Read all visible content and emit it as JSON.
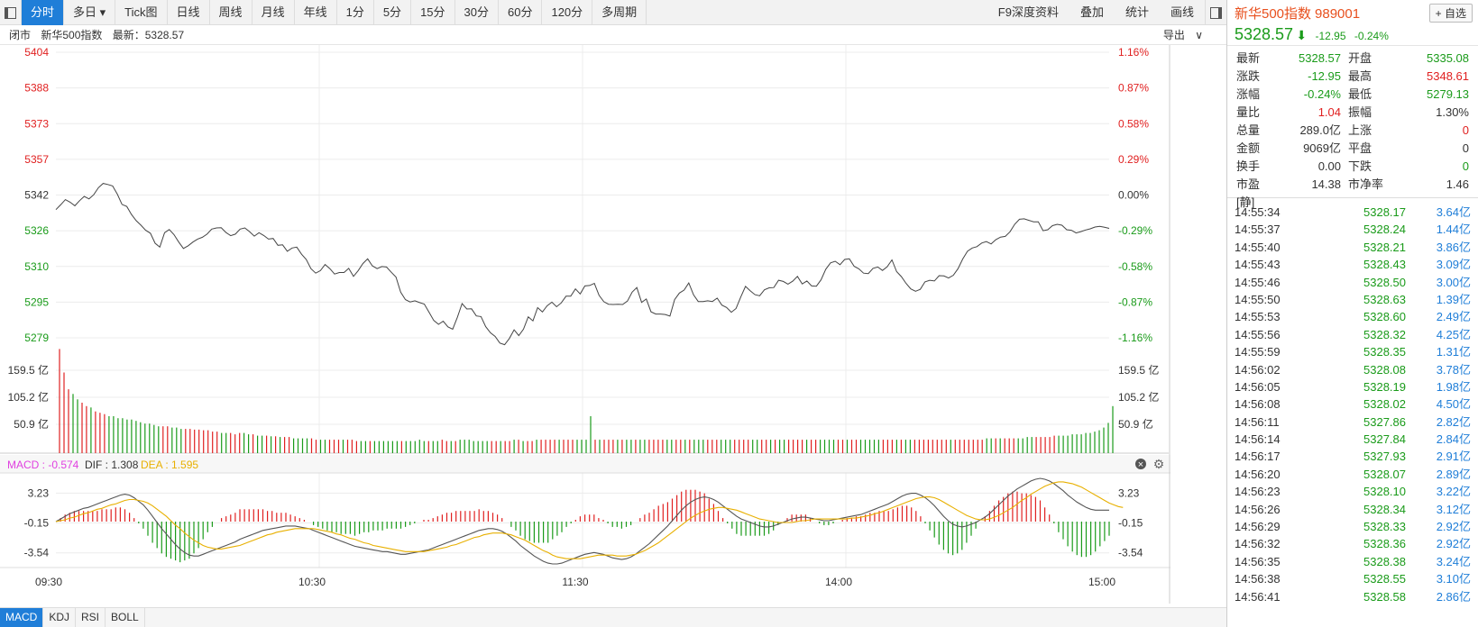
{
  "toolbar": {
    "tabs": [
      "分时",
      "多日",
      "Tick图",
      "日线",
      "周线",
      "月线",
      "年线",
      "1分",
      "5分",
      "15分",
      "30分",
      "60分",
      "120分",
      "多周期"
    ],
    "active_index": 0,
    "right_buttons": [
      "F9深度资料",
      "叠加",
      "统计",
      "画线"
    ]
  },
  "infobar": {
    "status": "闭市",
    "name": "新华500指数",
    "latest_label": "最新：5328.57",
    "export": "导出"
  },
  "colors": {
    "up": "#e02020",
    "down": "#1a9b1a",
    "accent": "#1f7ed8",
    "dif": "#555555",
    "dea": "#e8b000",
    "macd_label": "#e040e0"
  },
  "price_axis": {
    "left": [
      "5404",
      "5388",
      "5373",
      "5357",
      "5342",
      "5326",
      "5310",
      "5295",
      "5279"
    ],
    "right": [
      "1.16%",
      "0.87%",
      "0.58%",
      "0.29%",
      "0.00%",
      "-0.29%",
      "-0.58%",
      "-0.87%",
      "-1.16%"
    ]
  },
  "volume_axis": [
    "159.5 亿",
    "105.2 亿",
    "50.9 亿"
  ],
  "macd": {
    "labels": [
      "MACD : -0.574",
      "DIF : 1.308",
      "DEA : 1.595"
    ],
    "axis": [
      "3.23",
      "-0.15",
      "-3.54"
    ]
  },
  "time_axis": [
    "09:30",
    "10:30",
    "11:30",
    "14:00",
    "15:00"
  ],
  "bottom_tabs": [
    "MACD",
    "KDJ",
    "RSI",
    "BOLL"
  ],
  "chart_data": {
    "type": "line",
    "price": [
      5335.1,
      5337.2,
      5339.5,
      5338.4,
      5336.8,
      5339.0,
      5340.9,
      5339.8,
      5341.6,
      5344.7,
      5346.6,
      5346.1,
      5345.5,
      5341.9,
      5337.4,
      5336.5,
      5333.0,
      5330.3,
      5328.3,
      5326.1,
      5324.8,
      5320.4,
      5318.7,
      5325.0,
      5326.4,
      5324.2,
      5320.9,
      5318.1,
      5319.3,
      5320.9,
      5322.2,
      5323.0,
      5324.4,
      5326.6,
      5327.1,
      5327.2,
      5325.1,
      5323.7,
      5324.4,
      5326.6,
      5327.1,
      5325.5,
      5323.5,
      5325.0,
      5323.8,
      5322.2,
      5322.5,
      5319.5,
      5319.7,
      5316.9,
      5318.3,
      5318.7,
      5315.6,
      5313.3,
      5309.3,
      5307.3,
      5308.4,
      5311.1,
      5309.3,
      5306.9,
      5307.6,
      5307.6,
      5309.4,
      5305.9,
      5308.4,
      5311.5,
      5313.6,
      5310.5,
      5309.3,
      5310.2,
      5310.0,
      5307.7,
      5305.6,
      5299.0,
      5295.7,
      5294.7,
      5295.2,
      5294.4,
      5293.8,
      5290.2,
      5286.6,
      5284.9,
      5286.3,
      5283.8,
      5282.8,
      5288.0,
      5294.0,
      5291.6,
      5291.7,
      5288.6,
      5288.3,
      5283.9,
      5281.2,
      5279.6,
      5276.7,
      5276.0,
      5278.7,
      5282.5,
      5280.0,
      5282.8,
      5288.2,
      5286.4,
      5292.2,
      5290.3,
      5293.0,
      5294.6,
      5292.6,
      5294.3,
      5297.2,
      5297.2,
      5300.4,
      5298.2,
      5301.7,
      5301.9,
      5302.8,
      5297.6,
      5294.8,
      5293.7,
      5293.6,
      5293.7,
      5293.6,
      5295.1,
      5299.0,
      5301.0,
      5294.5,
      5296.0,
      5290.4,
      5289.4,
      5289.4,
      5289.2,
      5288.5,
      5295.7,
      5298.6,
      5299.9,
      5303.0,
      5297.8,
      5294.9,
      5294.9,
      5295.2,
      5294.9,
      5296.4,
      5293.3,
      5292.3,
      5290.2,
      5291.8,
      5296.9,
      5301.5,
      5299.6,
      5297.9,
      5297.4,
      5300.0,
      5300.9,
      5301.0,
      5304.2,
      5303.7,
      5302.5,
      5303.8,
      5305.9,
      5302.6,
      5303.9,
      5301.7,
      5301.6,
      5304.4,
      5309.0,
      5311.8,
      5312.5,
      5311.0,
      5313.3,
      5313.6,
      5310.3,
      5309.2,
      5307.3,
      5307.1,
      5309.4,
      5310.0,
      5308.5,
      5310.1,
      5313.1,
      5308.0,
      5305.8,
      5302.8,
      5300.4,
      5299.4,
      5300.2,
      5303.5,
      5304.2,
      5303.9,
      5306.2,
      5306.1,
      5305.2,
      5306.4,
      5309.3,
      5313.5,
      5316.9,
      5318.3,
      5318.9,
      5320.5,
      5321.1,
      5320.1,
      5322.0,
      5323.1,
      5323.4,
      5325.4,
      5328.7,
      5330.9,
      5331.1,
      5330.4,
      5329.8,
      5329.8,
      5325.9,
      5326.3,
      5328.1,
      5328.7,
      5328.3,
      5326.3,
      5326.1,
      5324.9,
      5325.5,
      5326.2,
      5326.7,
      5327.5,
      5327.8,
      5327.4,
      5326.9
    ],
    "volume_yi": [
      155,
      120,
      95,
      88,
      80,
      75,
      70,
      68,
      62,
      60,
      58,
      55,
      55,
      52,
      52,
      50,
      50,
      48,
      46,
      44,
      44,
      42,
      40,
      40,
      40,
      38,
      38,
      36,
      36,
      36,
      35,
      35,
      34,
      34,
      32,
      32,
      30,
      30,
      30,
      28,
      30,
      30,
      28,
      28,
      26,
      26,
      26,
      25,
      25,
      24,
      24,
      24,
      22,
      22,
      22,
      22,
      22,
      20,
      20,
      20,
      20,
      20,
      20,
      20,
      20,
      20,
      18,
      18,
      18,
      18,
      18,
      18,
      18,
      18,
      18,
      18,
      18,
      18,
      18,
      18,
      20,
      18,
      18,
      18,
      18,
      20,
      18,
      18,
      18,
      20,
      20,
      20,
      18,
      18,
      18,
      18,
      18,
      18,
      18,
      18,
      18,
      20,
      20,
      18,
      18,
      18,
      20,
      20,
      20,
      20,
      20,
      20,
      20,
      20,
      20,
      20,
      20,
      20,
      55,
      20,
      20,
      20,
      20,
      20,
      20,
      20,
      20,
      20,
      20,
      20,
      20,
      20,
      20,
      20,
      20,
      20,
      20,
      20,
      20,
      20,
      20,
      20,
      20,
      20,
      20,
      20,
      20,
      20,
      20,
      20,
      20,
      20,
      20,
      20,
      20,
      20,
      20,
      20,
      20,
      20,
      20,
      20,
      20,
      20,
      20,
      20,
      20,
      20,
      20,
      20,
      20,
      20,
      20,
      20,
      20,
      20,
      20,
      20,
      20,
      20,
      20,
      20,
      20,
      20,
      20,
      20,
      20,
      20,
      20,
      20,
      20,
      20,
      20,
      20,
      20,
      20,
      20,
      20,
      20,
      20,
      20,
      20,
      20,
      20,
      20,
      20,
      22,
      22,
      22,
      22,
      22,
      22,
      22,
      22,
      22,
      24,
      24,
      24,
      24,
      24,
      24,
      26,
      26,
      26,
      26,
      28,
      28,
      28,
      30,
      30,
      32,
      34,
      38,
      45,
      70
    ],
    "dif": [
      0.0,
      0.3,
      0.6,
      0.9,
      1.1,
      1.3,
      1.5,
      1.6,
      1.8,
      2.0,
      2.2,
      2.4,
      2.6,
      2.8,
      3.0,
      3.1,
      3.0,
      2.7,
      2.3,
      1.9,
      1.3,
      0.6,
      -0.1,
      -0.8,
      -1.4,
      -2.0,
      -2.6,
      -3.1,
      -3.5,
      -3.8,
      -3.9,
      -3.9,
      -3.7,
      -3.5,
      -3.3,
      -3.1,
      -2.9,
      -2.7,
      -2.5,
      -2.3,
      -2.0,
      -1.8,
      -1.6,
      -1.4,
      -1.2,
      -1.0,
      -0.9,
      -0.8,
      -0.7,
      -0.6,
      -0.5,
      -0.5,
      -0.5,
      -0.6,
      -0.7,
      -0.8,
      -1.0,
      -1.2,
      -1.4,
      -1.6,
      -1.8,
      -2.0,
      -2.2,
      -2.4,
      -2.6,
      -2.8,
      -2.9,
      -3.0,
      -3.1,
      -3.2,
      -3.3,
      -3.4,
      -3.4,
      -3.5,
      -3.6,
      -3.7,
      -3.7,
      -3.6,
      -3.5,
      -3.4,
      -3.3,
      -3.2,
      -3.0,
      -2.8,
      -2.6,
      -2.4,
      -2.2,
      -2.0,
      -1.8,
      -1.6,
      -1.4,
      -1.2,
      -1.0,
      -0.9,
      -0.8,
      -0.8,
      -0.9,
      -1.1,
      -1.4,
      -1.8,
      -2.2,
      -2.7,
      -3.1,
      -3.5,
      -3.9,
      -4.2,
      -4.5,
      -4.7,
      -4.8,
      -4.8,
      -4.7,
      -4.5,
      -4.3,
      -4.1,
      -3.9,
      -3.7,
      -3.6,
      -3.5,
      -3.6,
      -3.7,
      -3.9,
      -4.1,
      -4.2,
      -4.3,
      -4.2,
      -4.0,
      -3.7,
      -3.3,
      -2.9,
      -2.5,
      -2.0,
      -1.5,
      -1.0,
      -0.5,
      0.1,
      0.7,
      1.3,
      1.8,
      2.2,
      2.5,
      2.7,
      2.8,
      2.7,
      2.5,
      2.2,
      1.8,
      1.4,
      1.0,
      0.6,
      0.3,
      0.1,
      -0.1,
      -0.3,
      -0.5,
      -0.6,
      -0.6,
      -0.5,
      -0.3,
      -0.1,
      0.1,
      0.3,
      0.4,
      0.5,
      0.5,
      0.4,
      0.3,
      0.2,
      0.1,
      0.1,
      0.2,
      0.3,
      0.4,
      0.5,
      0.6,
      0.7,
      0.8,
      1.0,
      1.2,
      1.4,
      1.6,
      1.8,
      2.0,
      2.3,
      2.6,
      2.9,
      3.1,
      3.2,
      3.2,
      3.0,
      2.7,
      2.3,
      1.8,
      1.2,
      0.6,
      0.1,
      -0.3,
      -0.5,
      -0.6,
      -0.5,
      -0.3,
      -0.1,
      0.2,
      0.5,
      0.9,
      1.4,
      1.9,
      2.4,
      2.9,
      3.3,
      3.7,
      4.0,
      4.3,
      4.6,
      4.8,
      4.9,
      4.8,
      4.6,
      4.3,
      3.9,
      3.5,
      3.0,
      2.6,
      2.2,
      1.9,
      1.6,
      1.4,
      1.3,
      1.3,
      1.3,
      1.3
    ],
    "dea": [
      0.0,
      0.1,
      0.2,
      0.4,
      0.5,
      0.7,
      0.9,
      1.0,
      1.2,
      1.4,
      1.5,
      1.7,
      1.9,
      2.0,
      2.2,
      2.4,
      2.5,
      2.5,
      2.4,
      2.3,
      2.1,
      1.8,
      1.4,
      1.0,
      0.6,
      0.1,
      -0.4,
      -0.8,
      -1.3,
      -1.7,
      -2.1,
      -2.4,
      -2.7,
      -2.9,
      -3.0,
      -3.1,
      -3.1,
      -3.0,
      -2.9,
      -2.8,
      -2.7,
      -2.5,
      -2.3,
      -2.1,
      -1.9,
      -1.7,
      -1.5,
      -1.4,
      -1.2,
      -1.1,
      -1.0,
      -0.9,
      -0.8,
      -0.8,
      -0.8,
      -0.8,
      -0.8,
      -0.9,
      -1.0,
      -1.1,
      -1.2,
      -1.4,
      -1.5,
      -1.7,
      -1.9,
      -2.0,
      -2.2,
      -2.4,
      -2.5,
      -2.7,
      -2.8,
      -2.9,
      -3.0,
      -3.1,
      -3.2,
      -3.3,
      -3.4,
      -3.4,
      -3.4,
      -3.4,
      -3.4,
      -3.3,
      -3.2,
      -3.1,
      -3.0,
      -2.9,
      -2.7,
      -2.6,
      -2.4,
      -2.2,
      -2.0,
      -1.8,
      -1.7,
      -1.5,
      -1.4,
      -1.3,
      -1.3,
      -1.3,
      -1.4,
      -1.5,
      -1.7,
      -1.9,
      -2.1,
      -2.4,
      -2.7,
      -3.0,
      -3.3,
      -3.5,
      -3.8,
      -4.0,
      -4.1,
      -4.2,
      -4.2,
      -4.2,
      -4.2,
      -4.1,
      -4.0,
      -3.9,
      -3.8,
      -3.8,
      -3.8,
      -3.8,
      -3.9,
      -3.9,
      -3.9,
      -3.8,
      -3.7,
      -3.5,
      -3.3,
      -3.0,
      -2.7,
      -2.4,
      -2.0,
      -1.6,
      -1.2,
      -0.8,
      -0.4,
      0.0,
      0.4,
      0.7,
      1.0,
      1.2,
      1.4,
      1.5,
      1.6,
      1.6,
      1.5,
      1.4,
      1.3,
      1.1,
      0.9,
      0.7,
      0.5,
      0.3,
      0.2,
      0.1,
      0.0,
      -0.1,
      -0.1,
      -0.1,
      -0.1,
      0.0,
      0.1,
      0.1,
      0.2,
      0.3,
      0.3,
      0.3,
      0.3,
      0.3,
      0.3,
      0.3,
      0.3,
      0.4,
      0.4,
      0.5,
      0.6,
      0.7,
      0.9,
      1.0,
      1.2,
      1.4,
      1.6,
      1.8,
      2.0,
      2.2,
      2.4,
      2.6,
      2.7,
      2.8,
      2.8,
      2.7,
      2.5,
      2.2,
      1.9,
      1.6,
      1.3,
      1.0,
      0.7,
      0.5,
      0.3,
      0.2,
      0.2,
      0.3,
      0.5,
      0.7,
      1.0,
      1.3,
      1.6,
      2.0,
      2.4,
      2.7,
      3.1,
      3.4,
      3.7,
      4.0,
      4.2,
      4.4,
      4.5,
      4.5,
      4.4,
      4.3,
      4.1,
      3.9,
      3.6,
      3.3,
      3.0,
      2.7,
      2.4,
      2.1,
      1.9,
      1.7,
      1.6
    ],
    "ylim_price": [
      5279,
      5404
    ],
    "ylim_volume_yi": [
      0,
      159.5
    ],
    "ylim_macd": [
      -5,
      5
    ],
    "grid": true
  },
  "quote": {
    "name": "新华500指数",
    "code": "989001",
    "fav": "+ 自选",
    "price": "5328.57",
    "arrow": "⬇",
    "change": "-12.95",
    "change_pct": "-0.24%",
    "stats": [
      {
        "k": "最新",
        "v": "5328.57",
        "vc": "green",
        "k2": "开盘",
        "v2": "5335.08",
        "v2c": "green"
      },
      {
        "k": "涨跌",
        "v": "-12.95",
        "vc": "green",
        "k2": "最高",
        "v2": "5348.61",
        "v2c": "red"
      },
      {
        "k": "涨幅",
        "v": "-0.24%",
        "vc": "green",
        "k2": "最低",
        "v2": "5279.13",
        "v2c": "green"
      },
      {
        "k": "量比",
        "v": "1.04",
        "vc": "red",
        "k2": "振幅",
        "v2": "1.30%",
        "v2c": ""
      },
      {
        "k": "总量",
        "v": "289.0亿",
        "vc": "",
        "k2": "上涨",
        "v2": "0",
        "v2c": "red"
      },
      {
        "k": "金额",
        "v": "9069亿",
        "vc": "",
        "k2": "平盘",
        "v2": "0",
        "v2c": ""
      },
      {
        "k": "换手",
        "v": "0.00",
        "vc": "",
        "k2": "下跌",
        "v2": "0",
        "v2c": "green"
      },
      {
        "k": "市盈[静]",
        "v": "14.38",
        "vc": "",
        "k2": "市净率",
        "v2": "1.46",
        "v2c": ""
      }
    ],
    "ticks": [
      {
        "t": "14:55:34",
        "p": "5328.17",
        "v": "3.64亿"
      },
      {
        "t": "14:55:37",
        "p": "5328.24",
        "v": "1.44亿"
      },
      {
        "t": "14:55:40",
        "p": "5328.21",
        "v": "3.86亿"
      },
      {
        "t": "14:55:43",
        "p": "5328.43",
        "v": "3.09亿"
      },
      {
        "t": "14:55:46",
        "p": "5328.50",
        "v": "3.00亿"
      },
      {
        "t": "14:55:50",
        "p": "5328.63",
        "v": "1.39亿"
      },
      {
        "t": "14:55:53",
        "p": "5328.60",
        "v": "2.49亿"
      },
      {
        "t": "14:55:56",
        "p": "5328.32",
        "v": "4.25亿"
      },
      {
        "t": "14:55:59",
        "p": "5328.35",
        "v": "1.31亿"
      },
      {
        "t": "14:56:02",
        "p": "5328.08",
        "v": "3.78亿"
      },
      {
        "t": "14:56:05",
        "p": "5328.19",
        "v": "1.98亿"
      },
      {
        "t": "14:56:08",
        "p": "5328.02",
        "v": "4.50亿"
      },
      {
        "t": "14:56:11",
        "p": "5327.86",
        "v": "2.82亿"
      },
      {
        "t": "14:56:14",
        "p": "5327.84",
        "v": "2.84亿"
      },
      {
        "t": "14:56:17",
        "p": "5327.93",
        "v": "2.91亿"
      },
      {
        "t": "14:56:20",
        "p": "5328.07",
        "v": "2.89亿"
      },
      {
        "t": "14:56:23",
        "p": "5328.10",
        "v": "3.22亿"
      },
      {
        "t": "14:56:26",
        "p": "5328.34",
        "v": "3.12亿"
      },
      {
        "t": "14:56:29",
        "p": "5328.33",
        "v": "2.92亿"
      },
      {
        "t": "14:56:32",
        "p": "5328.36",
        "v": "2.92亿"
      },
      {
        "t": "14:56:35",
        "p": "5328.38",
        "v": "3.24亿"
      },
      {
        "t": "14:56:38",
        "p": "5328.55",
        "v": "3.10亿"
      },
      {
        "t": "14:56:41",
        "p": "5328.58",
        "v": "2.86亿"
      }
    ]
  }
}
